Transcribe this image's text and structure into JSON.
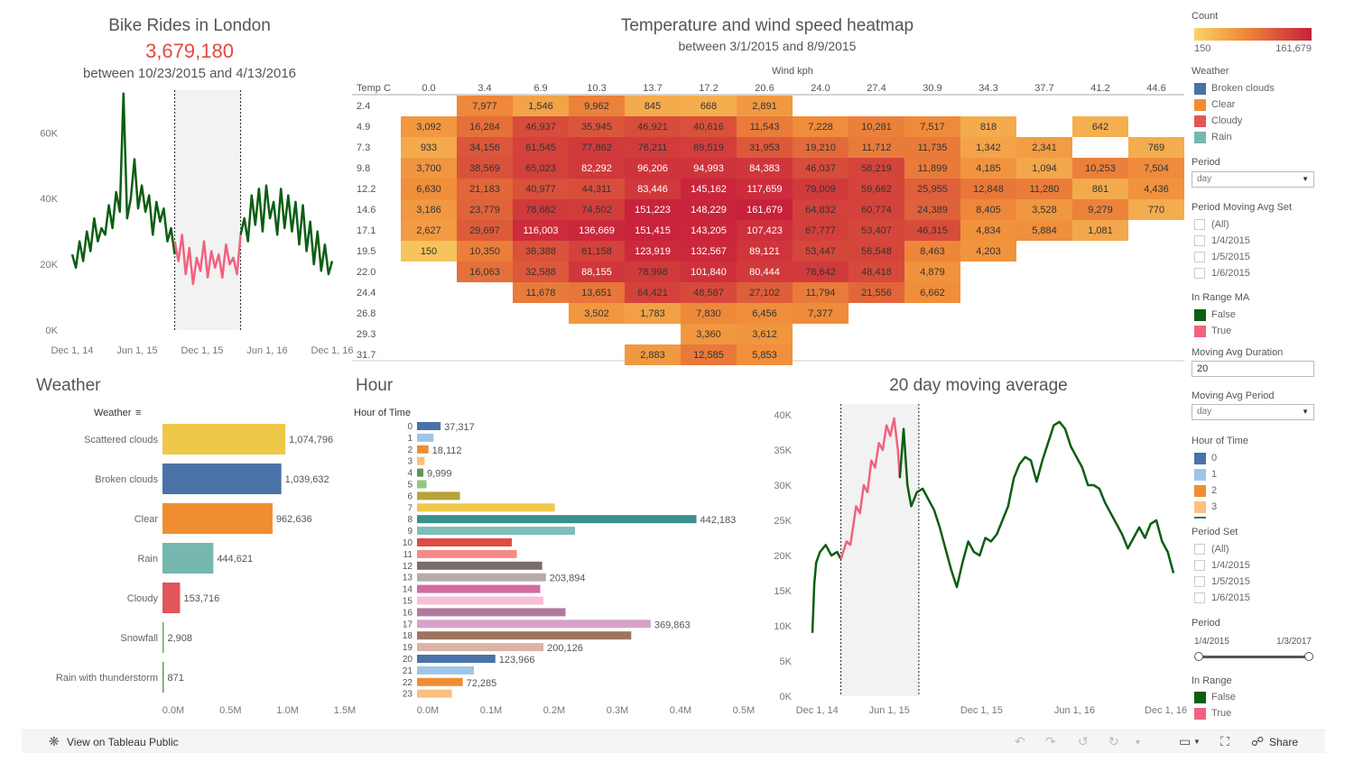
{
  "bike_rides": {
    "title": "Bike Rides in London",
    "total": "3,679,180",
    "range": "between 10/23/2015 and 4/13/2016",
    "chart_data": {
      "type": "line",
      "y_ticks": [
        "0K",
        "20K",
        "40K",
        "60K"
      ],
      "x_ticks": [
        "Dec 1, 14",
        "Jun 1, 15",
        "Dec 1, 15",
        "Jun 1, 16",
        "Dec 1, 16"
      ],
      "ylim": [
        0,
        73000
      ],
      "series": [
        {
          "color": "#0b5e12",
          "x": [
            0,
            4,
            8,
            12,
            16,
            20,
            24,
            28,
            32,
            36,
            40,
            44,
            48,
            52,
            56,
            60,
            64,
            68,
            72,
            76,
            80,
            84,
            88,
            92,
            96,
            100,
            104,
            108,
            112
          ],
          "y": [
            23000,
            19000,
            27000,
            21000,
            30000,
            24000,
            34000,
            27000,
            31000,
            29000,
            38000,
            31000,
            42000,
            36000,
            72000,
            34000,
            40000,
            52000,
            37000,
            44000,
            36000,
            41000,
            29000,
            39000,
            33000,
            37000,
            27000,
            31000,
            23000
          ]
        },
        {
          "color": "#f0637f",
          "x": [
            112,
            116,
            120,
            124,
            128,
            132,
            136,
            140,
            144,
            148,
            152,
            156,
            160,
            164,
            168,
            172,
            176,
            180,
            184
          ],
          "y": [
            27000,
            21000,
            29000,
            17000,
            25000,
            14000,
            22000,
            18000,
            27000,
            16000,
            24000,
            19000,
            23000,
            16000,
            26000,
            20000,
            22000,
            17000,
            29000
          ]
        },
        {
          "color": "#0b5e12",
          "x": [
            184,
            188,
            192,
            196,
            200,
            204,
            208,
            212,
            216,
            220,
            224,
            228,
            232,
            236,
            240,
            244,
            248,
            252,
            256,
            260,
            264,
            268,
            272,
            276,
            280,
            284
          ],
          "y": [
            29000,
            34000,
            27000,
            41000,
            32000,
            43000,
            30000,
            44000,
            34000,
            39000,
            29000,
            43000,
            31000,
            41000,
            30000,
            39000,
            26000,
            38000,
            24000,
            33000,
            20000,
            30000,
            18000,
            26000,
            17000,
            21000
          ]
        }
      ]
    }
  },
  "heatmap": {
    "title": "Temperature and wind speed heatmap",
    "range": "between 3/1/2015 and 8/9/2015",
    "chart_data": {
      "type": "heatmap",
      "col_axis_title": "Wind kph",
      "row_axis_title": "Temp C",
      "columns": [
        "0.0",
        "3.4",
        "6.9",
        "10.3",
        "13.7",
        "17.2",
        "20.6",
        "24.0",
        "27.4",
        "30.9",
        "34.3",
        "37.7",
        "41.2",
        "44.6"
      ],
      "rows": [
        "2.4",
        "4.9",
        "7.3",
        "9.8",
        "12.2",
        "14.6",
        "17.1",
        "19.5",
        "22.0",
        "24.4",
        "26.8",
        "29.3",
        "31.7"
      ],
      "values": [
        [
          "",
          "7,977",
          "1,546",
          "9,962",
          "845",
          "668",
          "2,891",
          "",
          "",
          "",
          "",
          "",
          "",
          ""
        ],
        [
          "3,092",
          "16,284",
          "46,937",
          "35,945",
          "46,921",
          "40,616",
          "11,543",
          "7,228",
          "10,281",
          "7,517",
          "818",
          "",
          "642",
          ""
        ],
        [
          "933",
          "34,156",
          "61,545",
          "77,862",
          "76,211",
          "69,519",
          "31,953",
          "19,210",
          "11,712",
          "11,735",
          "1,342",
          "2,341",
          "",
          "769"
        ],
        [
          "3,700",
          "38,569",
          "65,023",
          "82,292",
          "96,206",
          "94,993",
          "84,383",
          "46,037",
          "58,219",
          "11,899",
          "4,185",
          "1,094",
          "10,253",
          "7,504"
        ],
        [
          "6,630",
          "21,183",
          "40,977",
          "44,311",
          "83,446",
          "145,162",
          "117,659",
          "79,009",
          "59,662",
          "25,955",
          "12,848",
          "11,280",
          "861",
          "4,436"
        ],
        [
          "3,186",
          "23,779",
          "78,662",
          "74,502",
          "151,223",
          "148,229",
          "161,679",
          "64,832",
          "60,774",
          "24,389",
          "8,405",
          "3,528",
          "9,279",
          "770"
        ],
        [
          "2,627",
          "29,697",
          "116,003",
          "136,669",
          "151,415",
          "143,205",
          "107,423",
          "67,777",
          "53,407",
          "46,315",
          "4,834",
          "5,884",
          "1,081",
          ""
        ],
        [
          "150",
          "10,350",
          "38,388",
          "61,158",
          "123,919",
          "132,567",
          "89,121",
          "53,447",
          "56,548",
          "8,463",
          "4,203",
          "",
          "",
          ""
        ],
        [
          "",
          "16,063",
          "32,588",
          "88,155",
          "78,998",
          "101,840",
          "80,444",
          "78,642",
          "48,418",
          "4,879",
          "",
          "",
          "",
          ""
        ],
        [
          "",
          "",
          "11,678",
          "13,651",
          "64,421",
          "48,587",
          "27,102",
          "11,794",
          "21,556",
          "6,662",
          "",
          "",
          "",
          ""
        ],
        [
          "",
          "",
          "",
          "3,502",
          "1,783",
          "7,830",
          "6,456",
          "7,377",
          "",
          "",
          "",
          "",
          "",
          ""
        ],
        [
          "",
          "",
          "",
          "",
          "",
          "3,360",
          "3,612",
          "",
          "",
          "",
          "",
          "",
          "",
          ""
        ],
        [
          "",
          "",
          "",
          "",
          "2,883",
          "12,585",
          "5,853",
          "",
          "",
          "",
          "",
          "",
          "",
          ""
        ]
      ],
      "min": 150,
      "max": 161679,
      "color_low": "#f6c35c",
      "color_high": "#c8213b"
    }
  },
  "weather": {
    "title": "Weather",
    "axis_title": "Weather",
    "chart_data": {
      "type": "bar",
      "categories": [
        "Scattered clouds",
        "Broken clouds",
        "Clear",
        "Rain",
        "Cloudy",
        "Snowfall",
        "Rain with thunderstorm"
      ],
      "values": [
        1074796,
        1039632,
        962636,
        444621,
        153716,
        2908,
        871
      ],
      "labels": [
        "1,074,796",
        "1,039,632",
        "962,636",
        "444,621",
        "153,716",
        "2,908",
        "871"
      ],
      "colors": [
        "#eec849",
        "#4a72a8",
        "#f08d31",
        "#76b7b0",
        "#e05659",
        "#69a85c",
        "#59a14f"
      ],
      "x_ticks": [
        "0.0M",
        "0.5M",
        "1.0M",
        "1.5M"
      ],
      "xlim": [
        0,
        1500000
      ]
    }
  },
  "hour": {
    "title": "Hour",
    "axis_title": "Hour of Time",
    "chart_data": {
      "type": "bar",
      "categories": [
        "0",
        "1",
        "2",
        "3",
        "4",
        "5",
        "6",
        "7",
        "8",
        "9",
        "10",
        "11",
        "12",
        "13",
        "14",
        "15",
        "16",
        "17",
        "18",
        "19",
        "20",
        "21",
        "22",
        "23"
      ],
      "values": [
        37317,
        26000,
        18112,
        12000,
        9999,
        15000,
        68000,
        218000,
        442183,
        250000,
        150000,
        158000,
        198000,
        203894,
        195000,
        200000,
        235000,
        369863,
        339000,
        200126,
        123966,
        90000,
        72285,
        55000
      ],
      "labels": [
        "37,317",
        "",
        "18,112",
        "",
        "9,999",
        "",
        "",
        "",
        "442,183",
        "",
        "",
        "",
        "",
        "203,894",
        "",
        "",
        "",
        "369,863",
        "",
        "200,126",
        "123,966",
        "",
        "72,285",
        ""
      ],
      "colors": [
        "#4a72a8",
        "#9ec6e6",
        "#f08d31",
        "#fcbf7e",
        "#5a9a4f",
        "#8cc97e",
        "#b8a23a",
        "#eec849",
        "#3a908d",
        "#7fbdb8",
        "#e04b45",
        "#f58a87",
        "#7a6c68",
        "#b7aca9",
        "#d36aa2",
        "#f7bfd3",
        "#b07aa0",
        "#d6a3c8",
        "#9c7561",
        "#d9b4a6",
        "#4a72a8",
        "#9ec6e6",
        "#f08d31",
        "#fcbf7e"
      ],
      "x_ticks": [
        "0.0M",
        "0.1M",
        "0.2M",
        "0.3M",
        "0.4M",
        "0.5M"
      ],
      "xlim": [
        0,
        500000
      ]
    }
  },
  "moving_avg": {
    "title": "20 day moving average",
    "chart_data": {
      "type": "line",
      "y_ticks": [
        "0K",
        "5K",
        "10K",
        "15K",
        "20K",
        "25K",
        "30K",
        "35K",
        "40K"
      ],
      "x_ticks": [
        "Dec 1, 14",
        "Jun 1, 15",
        "Dec 1, 15",
        "Jun 1, 16",
        "Dec 1, 16"
      ],
      "ylim": [
        0,
        40000
      ],
      "series": [
        {
          "color": "#0b5e12",
          "x": [
            0,
            2,
            4,
            8,
            14,
            20,
            26,
            30
          ],
          "y": [
            9000,
            16000,
            19000,
            20500,
            21500,
            20000,
            20500,
            19500
          ]
        },
        {
          "color": "#f0637f",
          "x": [
            30,
            36,
            40,
            46,
            50,
            54,
            58,
            62,
            66,
            70,
            74,
            78,
            82,
            86,
            90,
            92
          ],
          "y": [
            19500,
            22000,
            21500,
            27000,
            26000,
            30000,
            29000,
            33500,
            32500,
            36000,
            35000,
            38500,
            37000,
            39500,
            35000,
            31000
          ]
        },
        {
          "color": "#0b5e12",
          "x": [
            92,
            96,
            100,
            104,
            110,
            116,
            122,
            128,
            134,
            140,
            146,
            152,
            158,
            164,
            170,
            176,
            182,
            188,
            194,
            200,
            206,
            212,
            218,
            224,
            230,
            236,
            242,
            248,
            254,
            260,
            266,
            272,
            278,
            284,
            290,
            296,
            302,
            308,
            314,
            320,
            326,
            332,
            338,
            344,
            350,
            356,
            362,
            368,
            374,
            380
          ],
          "y": [
            31000,
            38000,
            30000,
            27000,
            29000,
            29500,
            28000,
            26500,
            24000,
            21000,
            18000,
            15500,
            19000,
            22000,
            20500,
            20000,
            22500,
            22000,
            23000,
            25000,
            27000,
            31000,
            33000,
            34000,
            33500,
            30500,
            33500,
            36000,
            38500,
            39000,
            38000,
            35500,
            34000,
            32500,
            30000,
            30000,
            29500,
            27500,
            26000,
            24500,
            23000,
            21000,
            22500,
            24000,
            22500,
            24500,
            25000,
            22000,
            20500,
            17500
          ]
        }
      ]
    }
  },
  "legend": {
    "count": {
      "title": "Count",
      "min": "150",
      "max": "161,679"
    },
    "weather": {
      "title": "Weather",
      "items": [
        {
          "label": "Broken clouds",
          "color": "#4a72a8"
        },
        {
          "label": "Clear",
          "color": "#f08d31"
        },
        {
          "label": "Cloudy",
          "color": "#e05659"
        },
        {
          "label": "Rain",
          "color": "#76b7b0"
        }
      ]
    },
    "period": {
      "title": "Period",
      "value": "day"
    },
    "period_moving_avg_set": {
      "title": "Period Moving Avg Set",
      "items": [
        "(All)",
        "1/4/2015",
        "1/5/2015",
        "1/6/2015"
      ]
    },
    "in_range_ma": {
      "title": "In Range MA",
      "items": [
        {
          "label": "False",
          "color": "#0b5e12"
        },
        {
          "label": "True",
          "color": "#f0637f"
        }
      ]
    },
    "moving_avg_duration": {
      "title": "Moving Avg Duration",
      "value": "20"
    },
    "moving_avg_period": {
      "title": "Moving Avg Period",
      "value": "day"
    },
    "hour_of_time": {
      "title": "Hour of Time",
      "items": [
        {
          "label": "0",
          "color": "#4a72a8"
        },
        {
          "label": "1",
          "color": "#9ec6e6"
        },
        {
          "label": "2",
          "color": "#f08d31"
        },
        {
          "label": "3",
          "color": "#fcbf7e"
        }
      ]
    },
    "period_set": {
      "title": "Period Set",
      "items": [
        "(All)",
        "1/4/2015",
        "1/5/2015",
        "1/6/2015"
      ]
    },
    "period_slider": {
      "title": "Period",
      "start": "1/4/2015",
      "end": "1/3/2017"
    },
    "in_range": {
      "title": "In Range",
      "items": [
        {
          "label": "False",
          "color": "#0b5e12"
        },
        {
          "label": "True",
          "color": "#f0637f"
        }
      ]
    }
  },
  "footer": {
    "view_label": "View on Tableau Public",
    "share_label": "Share"
  }
}
